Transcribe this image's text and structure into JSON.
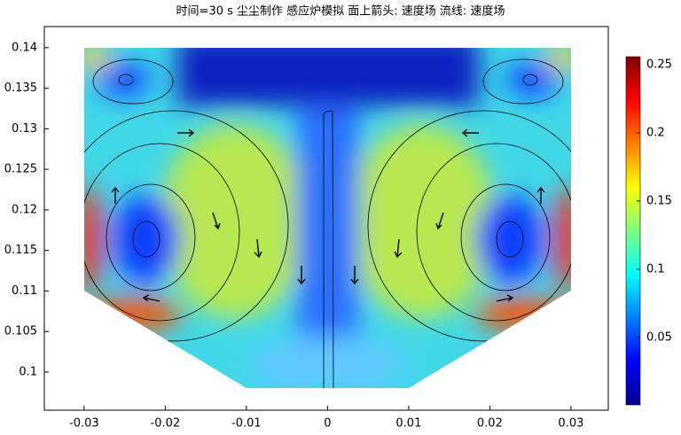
{
  "chart_data": {
    "type": "surface",
    "title": "时间=30 s  尘尘制作 感应炉模拟  面上箭头: 速度场  流线: 速度场",
    "xlim": [
      -0.0349,
      0.0346
    ],
    "xticks": [
      -0.03,
      -0.02,
      -0.01,
      0,
      0.01,
      0.02,
      0.03
    ],
    "ylim": [
      0.0953,
      0.1426
    ],
    "yticks": [
      0.1,
      0.105,
      0.11,
      0.115,
      0.12,
      0.125,
      0.13,
      0.135,
      0.14
    ],
    "colorbar": {
      "colormap": "jet",
      "lim": [
        0.0006,
        0.2558
      ],
      "ticks": [
        0.05,
        0.1,
        0.15,
        0.2,
        0.25
      ]
    }
  }
}
